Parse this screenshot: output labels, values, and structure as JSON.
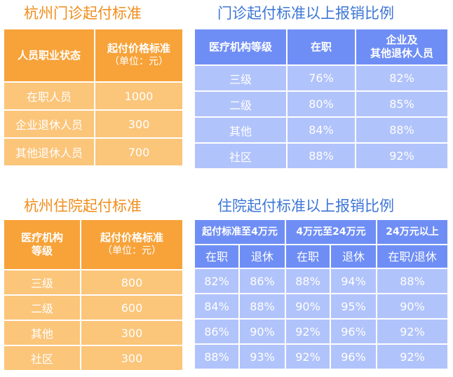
{
  "sections": {
    "outpatient_threshold": {
      "title": "杭州门诊起付标准",
      "header": {
        "col1": "人员职业状态",
        "col2": "起付价格标准",
        "col2_unit": "（单位：元）"
      },
      "rows": [
        {
          "status": "在职人员",
          "amount": "1000"
        },
        {
          "status": "企业退休人员",
          "amount": "300"
        },
        {
          "status": "其他退休人员",
          "amount": "700"
        }
      ]
    },
    "outpatient_ratio": {
      "title": "门诊起付标准以上报销比例",
      "header": {
        "col1": "医疗机构等级",
        "col2": "在职",
        "col3_line1": "企业及",
        "col3_line2": "其他退休人员"
      },
      "rows": [
        {
          "level": "三级",
          "employed": "76%",
          "retired": "82%"
        },
        {
          "level": "二级",
          "employed": "80%",
          "retired": "85%"
        },
        {
          "level": "其他",
          "employed": "84%",
          "retired": "88%"
        },
        {
          "level": "社区",
          "employed": "88%",
          "retired": "92%"
        }
      ]
    },
    "inpatient_threshold": {
      "title": "杭州住院起付标准",
      "header": {
        "col1_line1": "医疗机构",
        "col1_line2": "等级",
        "col2": "起付价格标准",
        "col2_unit": "（单位：元）"
      },
      "rows": [
        {
          "level": "三级",
          "amount": "800"
        },
        {
          "level": "二级",
          "amount": "600"
        },
        {
          "level": "其他",
          "amount": "300"
        },
        {
          "level": "社区",
          "amount": "300"
        }
      ]
    },
    "inpatient_ratio": {
      "title": "住院起付标准以上报销比例",
      "header": {
        "group1": "起付标准至4万元",
        "group2": "4万元至24万元",
        "group3": "24万元以上",
        "employed": "在职",
        "retired": "退休",
        "employed_retired": "在职/退休"
      },
      "rows": [
        {
          "a": "82%",
          "b": "86%",
          "c": "88%",
          "d": "94%",
          "e": "88%"
        },
        {
          "a": "84%",
          "b": "88%",
          "c": "90%",
          "d": "95%",
          "e": "90%"
        },
        {
          "a": "86%",
          "b": "90%",
          "c": "92%",
          "d": "96%",
          "e": "92%"
        },
        {
          "a": "88%",
          "b": "93%",
          "c": "92%",
          "d": "96%",
          "e": "92%"
        }
      ]
    }
  }
}
